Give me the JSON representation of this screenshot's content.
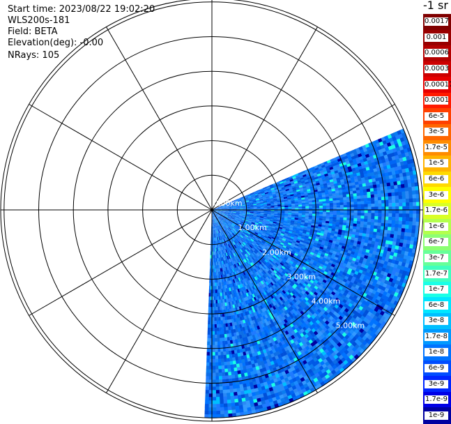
{
  "header": {
    "start_time": "Start time: 2023/08/22 19:02:20",
    "instrument": "WLS200s-181",
    "field": "Field: BETA",
    "elevation": "Elevation(deg): -0.00",
    "nrays": "NRays: 105"
  },
  "colorbar": {
    "title": "-1 sr",
    "labels": [
      "0.0017",
      "0.001",
      "0.0006",
      "0.0003",
      "0.00017",
      "0.0001",
      "6e-5",
      "3e-5",
      "1.7e-5",
      "1e-5",
      "6e-6",
      "3e-6",
      "1.7e-6",
      "1e-6",
      "6e-7",
      "3e-7",
      "1.7e-7",
      "1e-7",
      "6e-8",
      "3e-8",
      "1.7e-8",
      "1e-8",
      "6e-9",
      "3e-9",
      "1.7e-9",
      "1e-9"
    ],
    "colors": [
      "#800000",
      "#990000",
      "#b30000",
      "#cc0000",
      "#e60000",
      "#ff1a00",
      "#ff4000",
      "#ff6600",
      "#ff8c00",
      "#ffb300",
      "#ffd900",
      "#ffff00",
      "#d9ff26",
      "#b3ff4d",
      "#8cff73",
      "#66ff99",
      "#40ffbf",
      "#1affe6",
      "#00e6ff",
      "#00bfff",
      "#0099ff",
      "#0073ff",
      "#004dff",
      "#0026ff",
      "#0000e6",
      "#0000a0"
    ]
  },
  "chart_data": {
    "type": "ppi",
    "field": "BETA",
    "elevation_deg": 0.0,
    "nrays": 105,
    "range_ring_labels": [
      "0.00km",
      "1.00km",
      "2.00km",
      "3.00km",
      "4.00km",
      "5.00km"
    ],
    "range_ring_km": [
      0,
      1,
      2,
      3,
      4,
      5
    ],
    "scan_azimuth_deg": [
      67,
      182
    ],
    "max_range_km": 6.0,
    "spoke_interval_deg": 30,
    "ring_count": 6
  }
}
